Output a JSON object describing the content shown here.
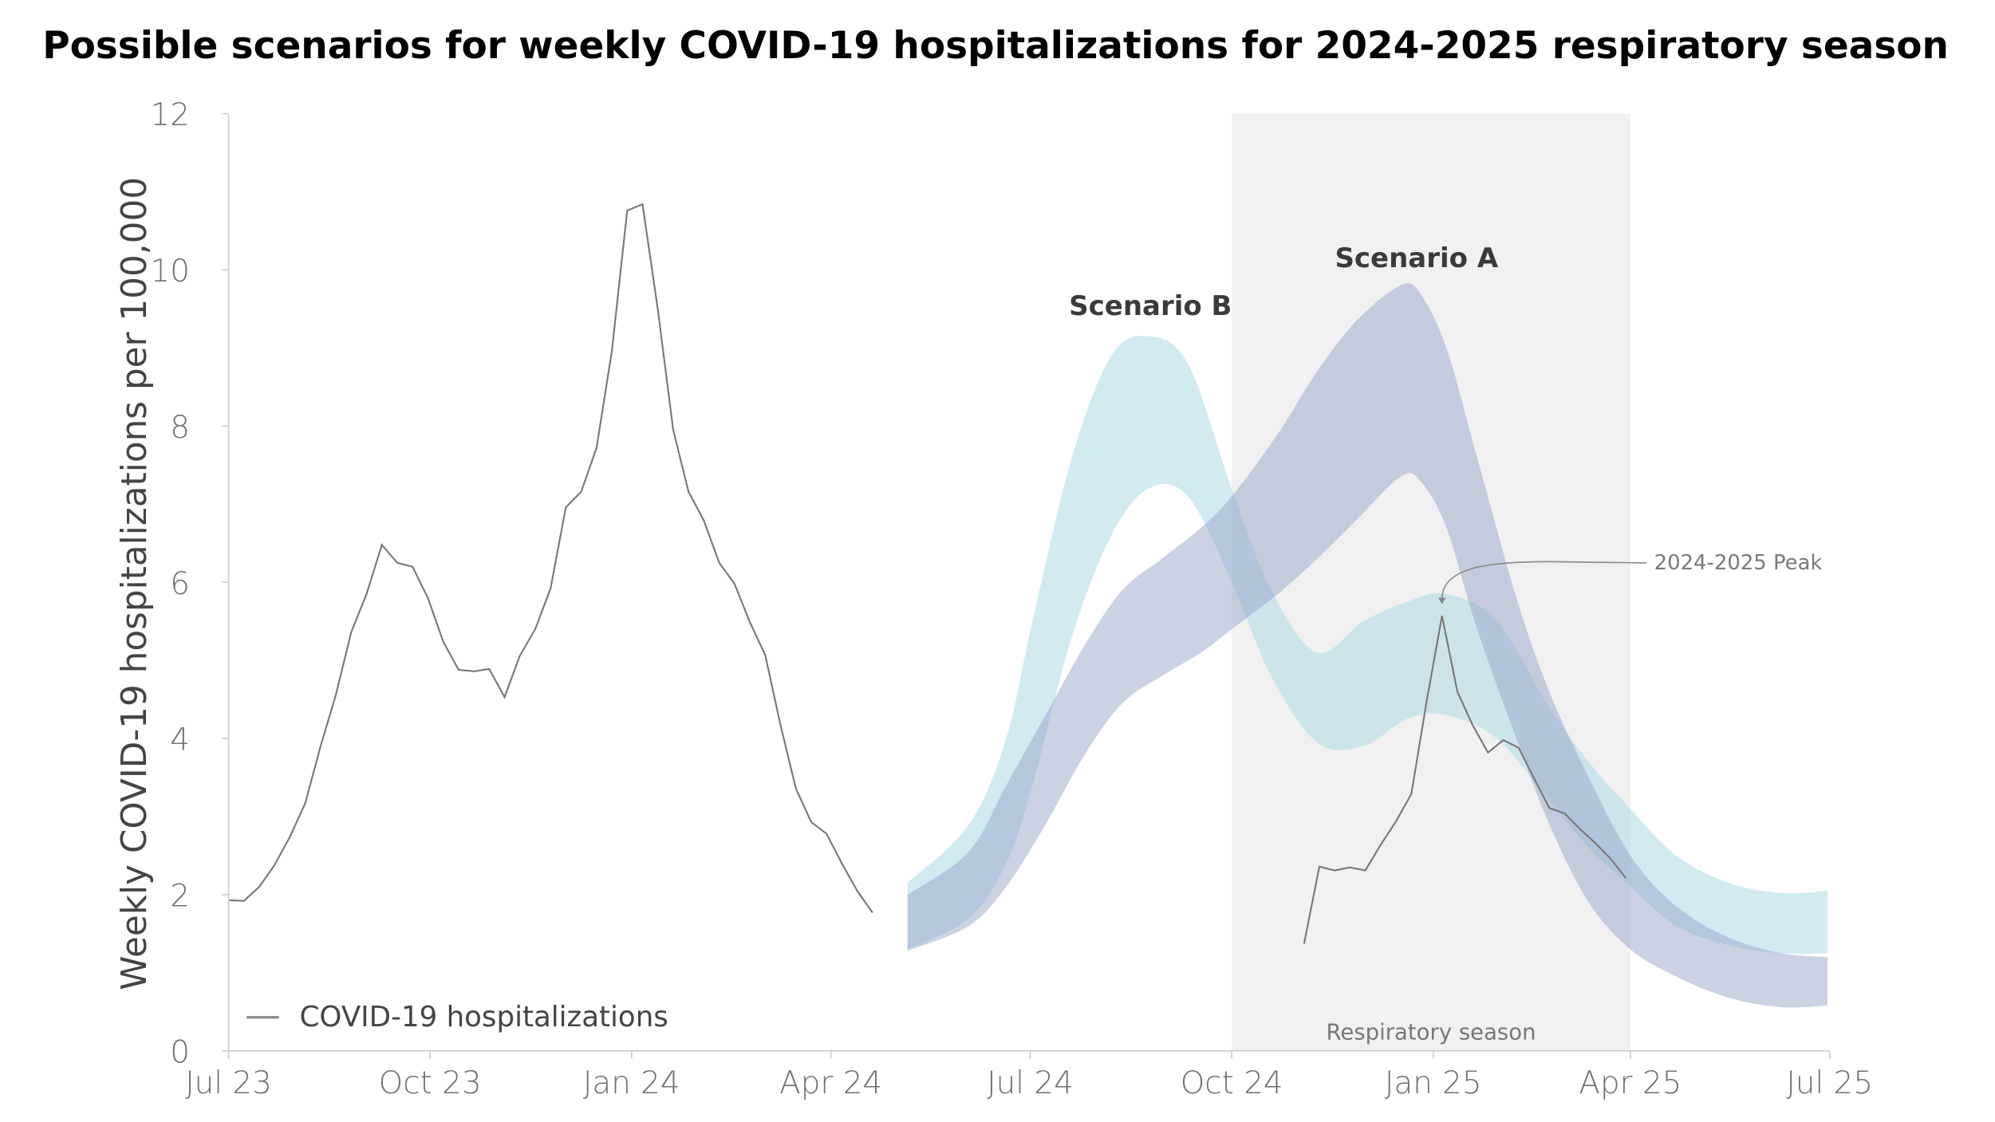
{
  "chart_data": {
    "type": "line",
    "title": "Possible scenarios for weekly COVID-19 hospitalizations for 2024-2025 respiratory season",
    "xlabel": "",
    "ylabel": "Weekly COVID-19 hospitalizations per 100,000",
    "xlim": [
      "2023-07-01",
      "2025-07-01"
    ],
    "ylim": [
      0,
      12
    ],
    "x_ticks": [
      {
        "date": "2023-07-01",
        "label": "Jul 23"
      },
      {
        "date": "2023-10-01",
        "label": "Oct 23"
      },
      {
        "date": "2024-01-01",
        "label": "Jan 24"
      },
      {
        "date": "2024-04-01",
        "label": "Apr 24"
      },
      {
        "date": "2024-07-01",
        "label": "Jul 24"
      },
      {
        "date": "2024-10-01",
        "label": "Oct 24"
      },
      {
        "date": "2025-01-01",
        "label": "Jan 25"
      },
      {
        "date": "2025-04-01",
        "label": "Apr 25"
      },
      {
        "date": "2025-07-01",
        "label": "Jul 25"
      }
    ],
    "y_ticks": [
      0,
      2,
      4,
      6,
      8,
      10,
      12
    ],
    "grid": false,
    "legend": {
      "position": "bottom-left",
      "entries": [
        "COVID-19 hospitalizations"
      ]
    },
    "shaded_region": {
      "label": "Respiratory season",
      "start": "2024-10-01",
      "end": "2025-04-01",
      "color": "#f1f1f1"
    },
    "observed": [
      {
        "name": "COVID-19 hospitalizations",
        "color": "#777777",
        "x": [
          "2023-07-01",
          "2023-07-08",
          "2023-07-15",
          "2023-07-22",
          "2023-07-29",
          "2023-08-05",
          "2023-08-12",
          "2023-08-19",
          "2023-08-26",
          "2023-09-02",
          "2023-09-09",
          "2023-09-16",
          "2023-09-23",
          "2023-09-30",
          "2023-10-07",
          "2023-10-14",
          "2023-10-21",
          "2023-10-28",
          "2023-11-04",
          "2023-11-11",
          "2023-11-18",
          "2023-11-25",
          "2023-12-02",
          "2023-12-09",
          "2023-12-16",
          "2023-12-23",
          "2023-12-30",
          "2024-01-06",
          "2024-01-13",
          "2024-01-20",
          "2024-01-27",
          "2024-02-03",
          "2024-02-10",
          "2024-02-17",
          "2024-02-24",
          "2024-03-02",
          "2024-03-09",
          "2024-03-16",
          "2024-03-23",
          "2024-03-30",
          "2024-04-06",
          "2024-04-13",
          "2024-04-20"
        ],
        "y": [
          1.93,
          1.92,
          2.1,
          2.38,
          2.74,
          3.17,
          3.9,
          4.56,
          5.36,
          5.85,
          6.48,
          6.25,
          6.2,
          5.8,
          5.24,
          4.88,
          4.86,
          4.89,
          4.53,
          5.06,
          5.4,
          5.92,
          6.96,
          7.16,
          7.72,
          8.96,
          10.76,
          10.84,
          9.49,
          7.95,
          7.16,
          6.79,
          6.25,
          5.98,
          5.49,
          5.07,
          4.17,
          3.36,
          2.93,
          2.78,
          2.4,
          2.05,
          1.77
        ]
      },
      {
        "color": "#777777",
        "x": [
          "2024-11-03",
          "2024-11-10",
          "2024-11-17",
          "2024-11-24",
          "2024-12-01",
          "2024-12-08",
          "2024-12-15",
          "2024-12-22",
          "2024-12-29",
          "2025-01-05",
          "2025-01-12",
          "2025-01-19",
          "2025-01-26",
          "2025-02-02",
          "2025-02-09",
          "2025-02-16",
          "2025-02-23",
          "2025-03-02",
          "2025-03-09",
          "2025-03-16",
          "2025-03-23",
          "2025-03-30"
        ],
        "y": [
          1.37,
          2.36,
          2.31,
          2.35,
          2.31,
          2.64,
          2.94,
          3.29,
          4.48,
          5.57,
          4.6,
          4.17,
          3.82,
          3.98,
          3.88,
          3.49,
          3.11,
          3.04,
          2.84,
          2.66,
          2.46,
          2.21
        ]
      }
    ],
    "bands": [
      {
        "name": "Scenario B",
        "color": "#b3dde7",
        "x": [
          "2024-05-06",
          "2024-06-03",
          "2024-06-20",
          "2024-07-02",
          "2024-07-20",
          "2024-08-07",
          "2024-08-24",
          "2024-09-11",
          "2024-10-01",
          "2024-10-19",
          "2024-11-09",
          "2024-11-30",
          "2024-12-20",
          "2025-01-07",
          "2025-01-30",
          "2025-02-23",
          "2025-03-13",
          "2025-04-01",
          "2025-04-22",
          "2025-05-16",
          "2025-06-09",
          "2025-06-30"
        ],
        "upper": [
          2.15,
          2.9,
          4.0,
          5.5,
          7.6,
          8.9,
          9.15,
          8.8,
          7.2,
          5.9,
          5.1,
          5.5,
          5.75,
          5.85,
          5.5,
          4.4,
          3.7,
          3.1,
          2.5,
          2.15,
          2.02,
          2.05
        ],
        "lower": [
          1.3,
          1.7,
          2.4,
          3.4,
          5.3,
          6.6,
          7.2,
          7.1,
          6.0,
          4.8,
          3.95,
          3.9,
          4.25,
          4.3,
          4.0,
          3.2,
          2.6,
          2.1,
          1.6,
          1.35,
          1.25,
          1.25
        ]
      },
      {
        "name": "Scenario A",
        "color": "#98a6c9",
        "x": [
          "2024-05-06",
          "2024-06-03",
          "2024-06-20",
          "2024-07-08",
          "2024-07-26",
          "2024-08-12",
          "2024-08-30",
          "2024-09-17",
          "2024-10-01",
          "2024-10-22",
          "2024-11-09",
          "2024-11-27",
          "2024-12-17",
          "2024-12-26",
          "2025-01-07",
          "2025-01-21",
          "2025-02-08",
          "2025-02-23",
          "2025-03-13",
          "2025-04-01",
          "2025-04-22",
          "2025-05-16",
          "2025-06-09",
          "2025-06-30"
        ],
        "upper": [
          2.0,
          2.55,
          3.4,
          4.3,
          5.2,
          5.9,
          6.3,
          6.7,
          7.1,
          7.9,
          8.7,
          9.35,
          9.8,
          9.7,
          9.0,
          7.6,
          5.8,
          4.6,
          3.5,
          2.5,
          1.85,
          1.45,
          1.25,
          1.2
        ],
        "lower": [
          1.28,
          1.6,
          2.1,
          2.9,
          3.8,
          4.45,
          4.8,
          5.1,
          5.4,
          5.85,
          6.3,
          6.8,
          7.35,
          7.3,
          6.7,
          5.4,
          4.0,
          2.9,
          1.9,
          1.3,
          0.95,
          0.68,
          0.56,
          0.58
        ]
      }
    ],
    "annotations": [
      {
        "text": "2024-2025 Peak",
        "points_to": {
          "x": "2025-01-05",
          "y": 5.57
        }
      }
    ]
  }
}
